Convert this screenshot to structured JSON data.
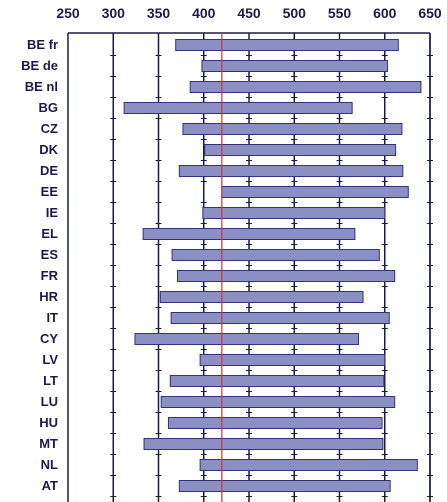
{
  "chart_data": {
    "type": "bar",
    "orientation": "horizontal-range",
    "title": "",
    "xlabel": "",
    "ylabel": "",
    "x_ticks": [
      250,
      300,
      350,
      400,
      450,
      500,
      550,
      600,
      650
    ],
    "xlim": [
      250,
      650
    ],
    "reference_line": 420,
    "colors": {
      "bar_fill": "#8c8fc4",
      "bar_stroke": "#33337a",
      "grid": "#1b1b4a",
      "reference": "#d33030",
      "text": "#1b1b4a"
    },
    "categories": [
      "BE fr",
      "BE de",
      "BE nl",
      "BG",
      "CZ",
      "DK",
      "DE",
      "EE",
      "IE",
      "EL",
      "ES",
      "FR",
      "HR",
      "IT",
      "CY",
      "LV",
      "LT",
      "LU",
      "HU",
      "MT",
      "NL",
      "AT"
    ],
    "ranges": [
      [
        369,
        615
      ],
      [
        398,
        603
      ],
      [
        385,
        640
      ],
      [
        312,
        564
      ],
      [
        377,
        619
      ],
      [
        401,
        612
      ],
      [
        373,
        620
      ],
      [
        420,
        626
      ],
      [
        399,
        600
      ],
      [
        333,
        567
      ],
      [
        365,
        594
      ],
      [
        371,
        611
      ],
      [
        352,
        576
      ],
      [
        364,
        605
      ],
      [
        324,
        571
      ],
      [
        396,
        600
      ],
      [
        363,
        599
      ],
      [
        353,
        611
      ],
      [
        361,
        597
      ],
      [
        334,
        598
      ],
      [
        396,
        636
      ],
      [
        373,
        606
      ]
    ]
  }
}
